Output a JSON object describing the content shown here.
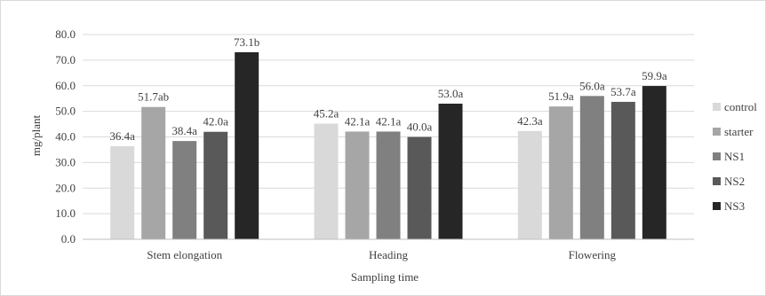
{
  "chart_data": {
    "type": "bar",
    "title": "",
    "xlabel": "Sampling time",
    "ylabel": "mg/plant",
    "ylim": [
      0,
      80
    ],
    "ytick_step": 10,
    "ytick_decimals": 1,
    "grid": true,
    "legend_position": "right",
    "categories": [
      "Stem elongation",
      "Heading",
      "Flowering"
    ],
    "series": [
      {
        "name": "control",
        "color": "#d9d9d9",
        "values": [
          36.4,
          45.2,
          42.3
        ],
        "labels": [
          "36.4a",
          "45.2a",
          "42.3a"
        ]
      },
      {
        "name": "starter",
        "color": "#a6a6a6",
        "values": [
          51.7,
          42.1,
          51.9
        ],
        "labels": [
          "51.7ab",
          "42.1a",
          "51.9a"
        ]
      },
      {
        "name": "NS1",
        "color": "#808080",
        "values": [
          38.4,
          42.1,
          56.0
        ],
        "labels": [
          "38.4a",
          "42.1a",
          "56.0a"
        ]
      },
      {
        "name": "NS2",
        "color": "#595959",
        "values": [
          42.0,
          40.0,
          53.7
        ],
        "labels": [
          "42.0a",
          "40.0a",
          "53.7a"
        ]
      },
      {
        "name": "NS3",
        "color": "#262626",
        "values": [
          73.1,
          53.0,
          59.9
        ],
        "labels": [
          "73.1b",
          "53.0a",
          "59.9a"
        ]
      }
    ]
  }
}
